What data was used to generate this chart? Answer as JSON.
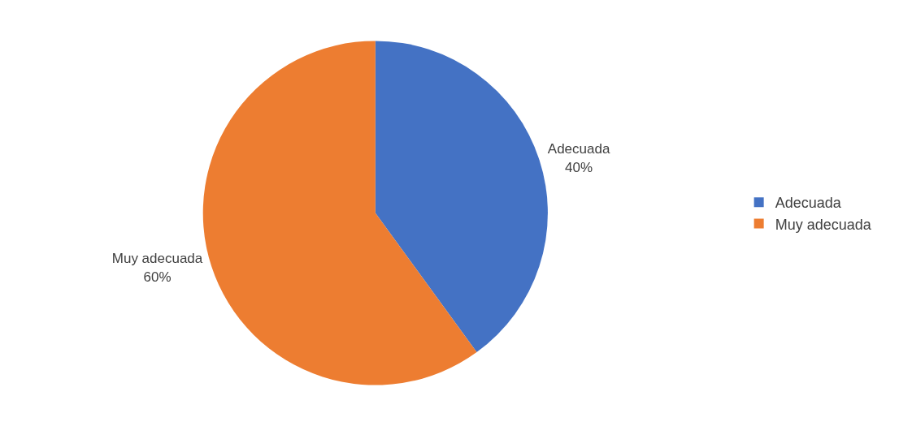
{
  "chart_data": {
    "type": "pie",
    "categories": [
      "Adecuada",
      "Muy adecuada"
    ],
    "values": [
      40,
      60
    ],
    "colors": [
      "#4472c4",
      "#ed7d31"
    ],
    "value_labels": [
      "40%",
      "60%"
    ],
    "legend": "right"
  }
}
